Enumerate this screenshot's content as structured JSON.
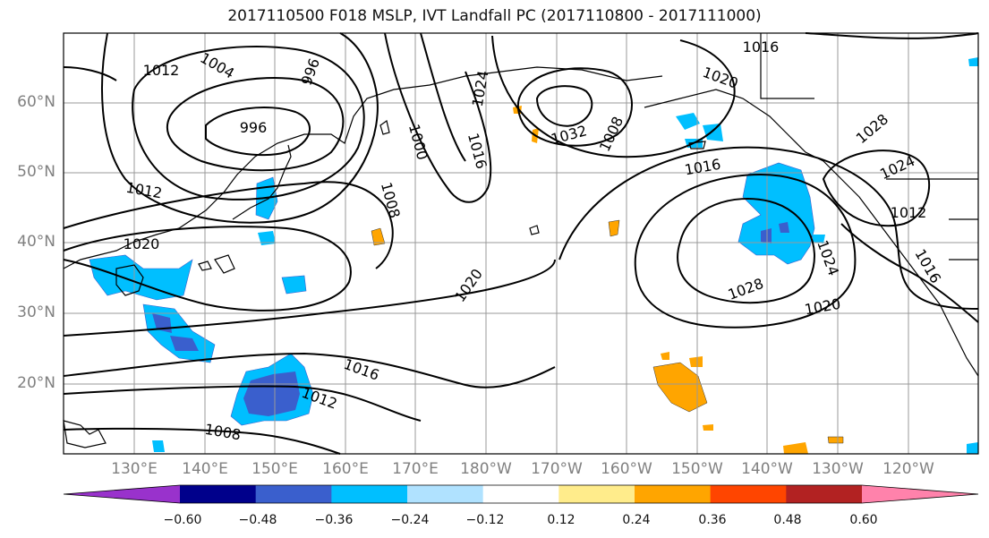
{
  "title": "2017110500 F018 MSLP, IVT Landfall PC (2017110800 - 2017111000)",
  "map": {
    "lat_labels": [
      "60°N",
      "50°N",
      "40°N",
      "30°N",
      "20°N"
    ],
    "lon_labels": [
      "130°E",
      "140°E",
      "150°E",
      "160°E",
      "170°E",
      "180°W",
      "170°W",
      "160°W",
      "150°W",
      "140°W",
      "130°W",
      "120°W"
    ],
    "contour_labels": [
      "1012",
      "1004",
      "996",
      "996",
      "1024",
      "1032",
      "1008",
      "1016",
      "1020",
      "1016",
      "1028",
      "1024",
      "1012",
      "1012",
      "1000",
      "1016",
      "1008",
      "1020",
      "1020",
      "1028",
      "1020",
      "1024",
      "1016",
      "1016",
      "1012",
      "1008"
    ],
    "colorbar": {
      "colors": [
        "#9932cc",
        "#00008b",
        "#3a5fcd",
        "#00bfff",
        "#b0e2ff",
        "#ffffff",
        "#ffec8b",
        "#ffa500",
        "#ff4500",
        "#b22222",
        "#ff82ab"
      ],
      "tick_labels": [
        "−0.60",
        "−0.48",
        "−0.36",
        "−0.24",
        "−0.12",
        "0.12",
        "0.24",
        "0.36",
        "0.48",
        "0.60"
      ]
    }
  }
}
